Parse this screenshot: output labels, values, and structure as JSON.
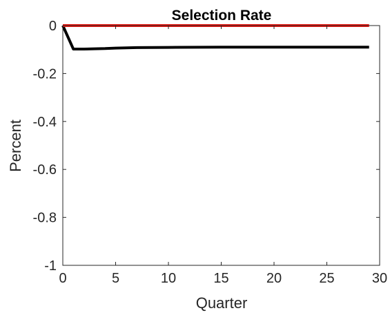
{
  "chart_data": {
    "type": "line",
    "title": "Selection Rate",
    "xlabel": "Quarter",
    "ylabel": "Percent",
    "xlim": [
      0,
      30
    ],
    "ylim": [
      -1,
      0
    ],
    "xticks": [
      0,
      5,
      10,
      15,
      20,
      25,
      30
    ],
    "yticks": [
      0,
      -0.2,
      -0.4,
      -0.6,
      -0.8,
      -1
    ],
    "xtick_labels": [
      "0",
      "5",
      "10",
      "15",
      "20",
      "25",
      "30"
    ],
    "ytick_labels": [
      "0",
      "-0.2",
      "-0.4",
      "-0.6",
      "-0.8",
      "-1"
    ],
    "grid": false,
    "series": [
      {
        "color": "#e8140f",
        "x": [
          0,
          29
        ],
        "y": [
          0,
          0
        ]
      },
      {
        "color": "#000000",
        "x": [
          0,
          1,
          2,
          3,
          4,
          5,
          7,
          10,
          15,
          20,
          25,
          29
        ],
        "y": [
          0,
          -0.098,
          -0.098,
          -0.097,
          -0.096,
          -0.094,
          -0.092,
          -0.091,
          -0.09,
          -0.09,
          -0.09,
          -0.09
        ]
      }
    ]
  }
}
